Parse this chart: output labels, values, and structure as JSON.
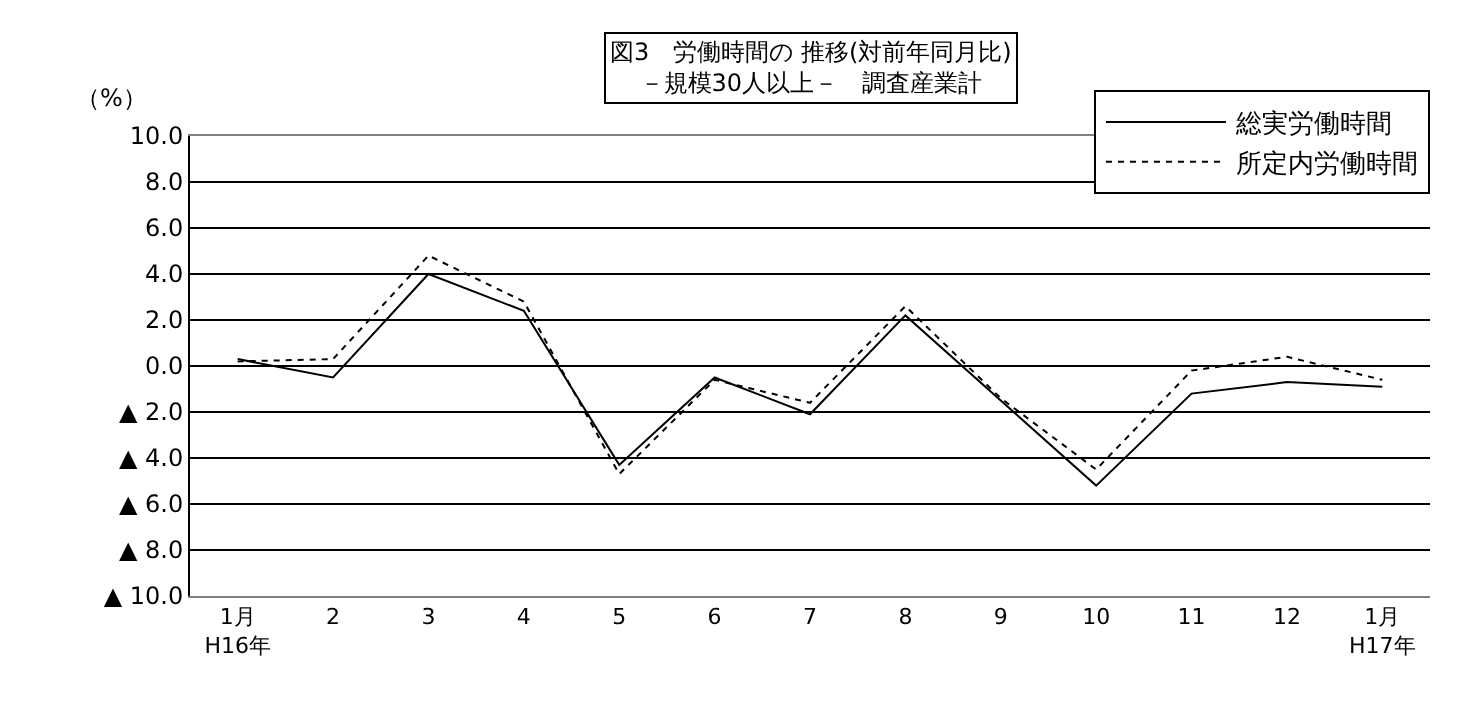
{
  "chart_data": {
    "type": "line",
    "title": "図3　労働時間の 推移(対前年同月比)\n－規模30人以上－　調査産業計",
    "ylabel": "（%）",
    "categories": [
      "1月\nH16年",
      "2",
      "3",
      "4",
      "5",
      "6",
      "7",
      "8",
      "9",
      "10",
      "11",
      "12",
      "1月\nH17年"
    ],
    "series": [
      {
        "name": "総実労働時間",
        "color": "#000000",
        "line_style": "solid",
        "values": [
          0.3,
          -0.5,
          4.0,
          2.4,
          -4.3,
          -0.5,
          -2.1,
          2.2,
          -1.5,
          -5.2,
          -1.2,
          -0.7,
          -0.9
        ]
      },
      {
        "name": "所定内労働時間",
        "color": "#000000",
        "line_style": "dotted",
        "values": [
          0.2,
          0.3,
          4.8,
          2.8,
          -4.7,
          -0.6,
          -1.6,
          2.6,
          -1.4,
          -4.5,
          -0.2,
          0.4,
          -0.6
        ]
      }
    ],
    "ylim": [
      -10,
      10
    ],
    "yticks": [
      {
        "value": 10,
        "label": "10.0"
      },
      {
        "value": 8,
        "label": "8.0"
      },
      {
        "value": 6,
        "label": "6.0"
      },
      {
        "value": 4,
        "label": "4.0"
      },
      {
        "value": 2,
        "label": "2.0"
      },
      {
        "value": 0,
        "label": "0.0"
      },
      {
        "value": -2,
        "label": "▲ 2.0"
      },
      {
        "value": -4,
        "label": "▲ 4.0"
      },
      {
        "value": -6,
        "label": "▲ 6.0"
      },
      {
        "value": -8,
        "label": "▲ 8.0"
      },
      {
        "value": -10,
        "label": "▲ 10.0"
      }
    ],
    "grid": "y",
    "legend": "top right",
    "marker": "none"
  }
}
